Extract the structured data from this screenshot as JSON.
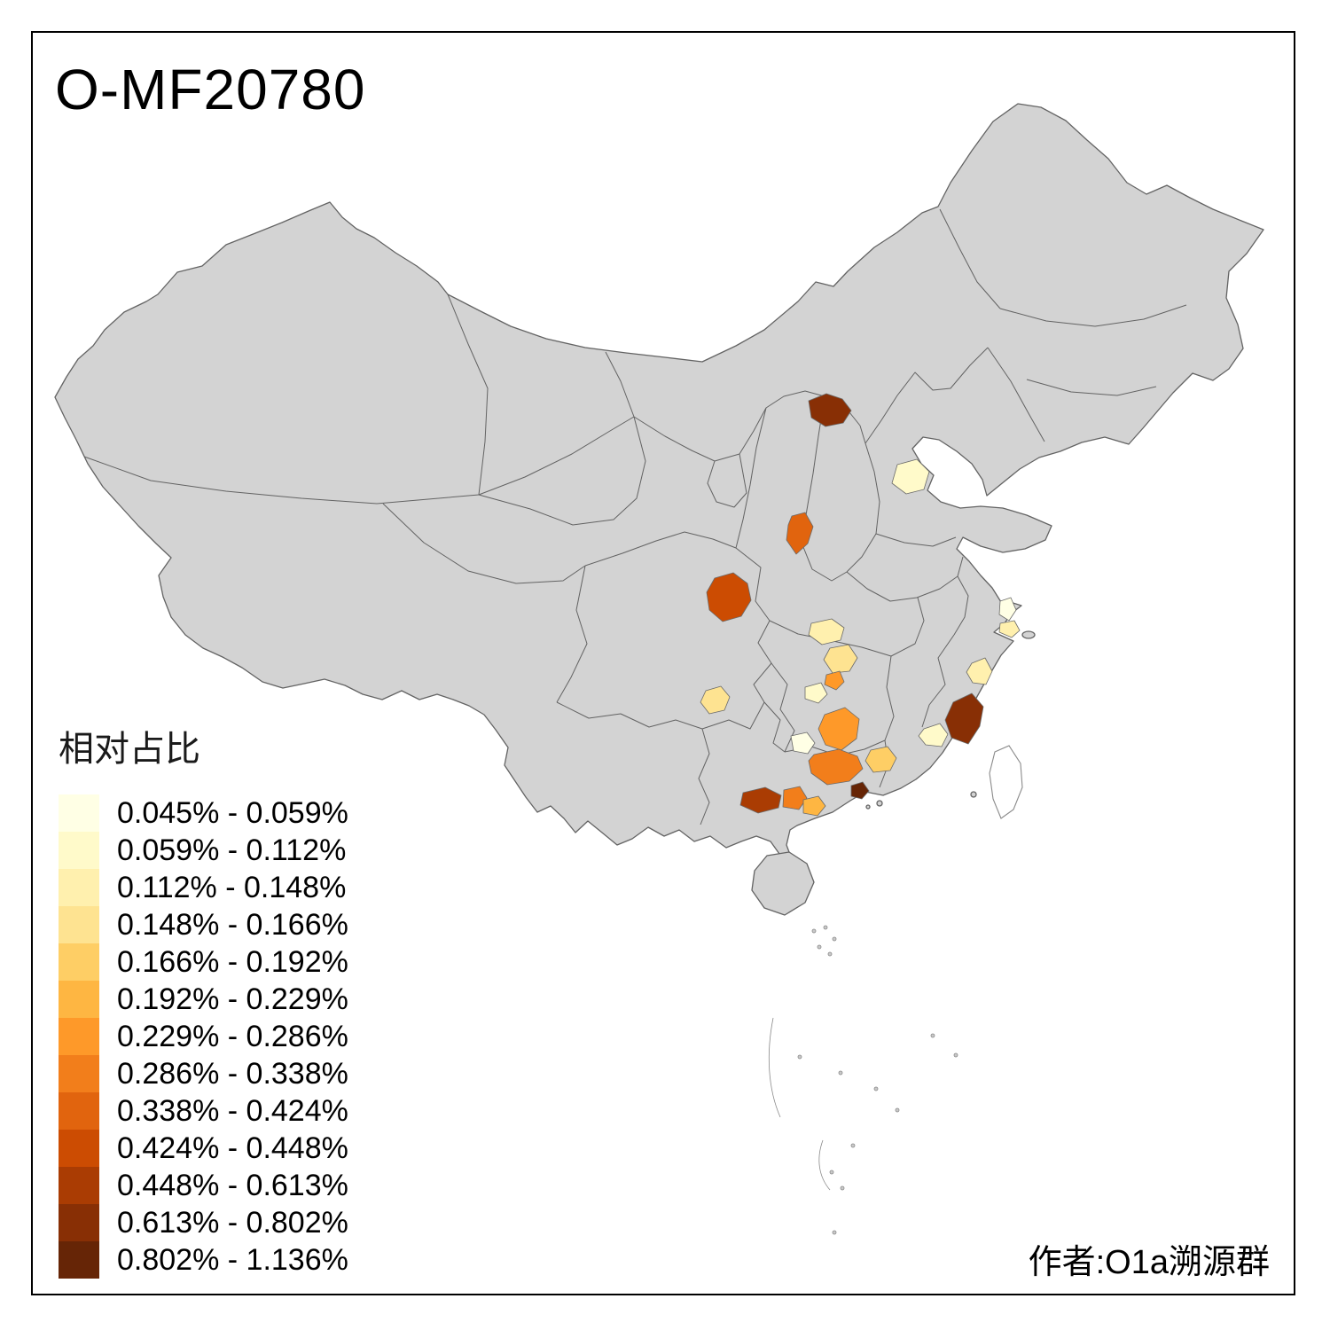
{
  "title": "O-MF20780",
  "attribution": "作者:O1a溯源群",
  "legend": {
    "title": "相对占比",
    "items": [
      {
        "range": "0.045% - 0.059%",
        "color": "#FFFFE5"
      },
      {
        "range": "0.059% - 0.112%",
        "color": "#FFFACA"
      },
      {
        "range": "0.112% - 0.148%",
        "color": "#FFF0AE"
      },
      {
        "range": "0.148% - 0.166%",
        "color": "#FEE391"
      },
      {
        "range": "0.166% - 0.192%",
        "color": "#FECE65"
      },
      {
        "range": "0.192% - 0.229%",
        "color": "#FEB642"
      },
      {
        "range": "0.229% - 0.286%",
        "color": "#FE9929"
      },
      {
        "range": "0.286% - 0.338%",
        "color": "#F27E1B"
      },
      {
        "range": "0.338% - 0.424%",
        "color": "#E1640E"
      },
      {
        "range": "0.424% - 0.448%",
        "color": "#CC4C02"
      },
      {
        "range": "0.448% - 0.613%",
        "color": "#AA3C03"
      },
      {
        "range": "0.613% - 0.802%",
        "color": "#882F05"
      },
      {
        "range": "0.802% - 1.136%",
        "color": "#662506"
      }
    ]
  },
  "map": {
    "base_fill": "#D3D3D3",
    "boundary_color": "#636363",
    "sea_color": "#FFFFFF",
    "patches": [
      {
        "legend_class": 11
      },
      {
        "legend_class": 1
      },
      {
        "legend_class": 8
      },
      {
        "legend_class": 9
      },
      {
        "legend_class": 2
      },
      {
        "legend_class": 3
      },
      {
        "legend_class": 6
      },
      {
        "legend_class": 1
      },
      {
        "legend_class": 3
      },
      {
        "legend_class": 6
      },
      {
        "legend_class": 7
      },
      {
        "legend_class": 4
      },
      {
        "legend_class": 10
      },
      {
        "legend_class": 7
      },
      {
        "legend_class": 5
      },
      {
        "legend_class": 12
      },
      {
        "legend_class": 11
      },
      {
        "legend_class": 1
      },
      {
        "legend_class": 2
      },
      {
        "legend_class": 0
      },
      {
        "legend_class": 2
      },
      {
        "legend_class": 0
      }
    ]
  }
}
